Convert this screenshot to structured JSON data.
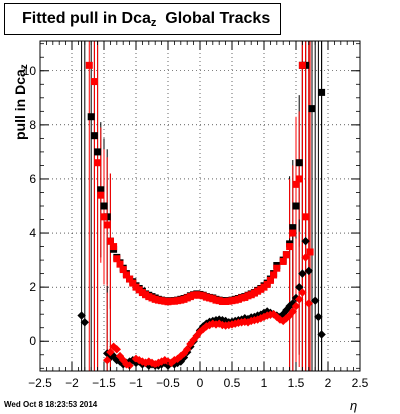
{
  "title": {
    "main": "Fitted pull in Dca",
    "subscript": "z",
    "suffix": "Global Tracks"
  },
  "timestamp": "Wed Oct  8 18:23:53 2014",
  "chart_data": {
    "type": "scatter",
    "title": "Fitted pull in Dca_z Global Tracks",
    "xlabel": "η",
    "ylabel": "pull in Dca_z",
    "xlim": [
      -2.5,
      2.5
    ],
    "ylim": [
      -1.1,
      11.1
    ],
    "x_ticks": [
      "-2.5",
      "-2",
      "-1.5",
      "-1",
      "-0.5",
      "0",
      "0.5",
      "1",
      "1.5",
      "2",
      "2.5"
    ],
    "y_ticks": [
      "0",
      "2",
      "4",
      "6",
      "8",
      "10"
    ],
    "grid": true,
    "series": [
      {
        "marker": "square",
        "color": "#000000",
        "points": [
          [
            -1.7,
            8.3
          ],
          [
            -1.65,
            7.6
          ],
          [
            -1.6,
            7.0
          ],
          [
            -1.55,
            5.6
          ],
          [
            -1.5,
            5.0
          ],
          [
            -1.45,
            4.6
          ],
          [
            -1.4,
            3.7
          ],
          [
            -1.35,
            3.4
          ],
          [
            -1.3,
            3.1
          ],
          [
            -1.25,
            2.9
          ],
          [
            -1.2,
            2.7
          ],
          [
            -1.15,
            2.5
          ],
          [
            -1.1,
            2.3
          ],
          [
            -1.05,
            2.2
          ],
          [
            -1.0,
            2.05
          ],
          [
            -0.95,
            1.95
          ],
          [
            -0.9,
            1.85
          ],
          [
            -0.85,
            1.75
          ],
          [
            -0.8,
            1.7
          ],
          [
            -0.75,
            1.65
          ],
          [
            -0.7,
            1.6
          ],
          [
            -0.65,
            1.55
          ],
          [
            -0.6,
            1.52
          ],
          [
            -0.55,
            1.5
          ],
          [
            -0.5,
            1.48
          ],
          [
            -0.45,
            1.5
          ],
          [
            -0.4,
            1.5
          ],
          [
            -0.35,
            1.52
          ],
          [
            -0.3,
            1.55
          ],
          [
            -0.25,
            1.58
          ],
          [
            -0.2,
            1.62
          ],
          [
            -0.15,
            1.68
          ],
          [
            -0.1,
            1.72
          ],
          [
            -0.05,
            1.75
          ],
          [
            0.0,
            1.73
          ],
          [
            0.05,
            1.7
          ],
          [
            0.1,
            1.65
          ],
          [
            0.15,
            1.62
          ],
          [
            0.2,
            1.6
          ],
          [
            0.25,
            1.55
          ],
          [
            0.3,
            1.52
          ],
          [
            0.35,
            1.5
          ],
          [
            0.4,
            1.5
          ],
          [
            0.45,
            1.5
          ],
          [
            0.5,
            1.52
          ],
          [
            0.55,
            1.55
          ],
          [
            0.6,
            1.58
          ],
          [
            0.65,
            1.62
          ],
          [
            0.7,
            1.65
          ],
          [
            0.75,
            1.7
          ],
          [
            0.8,
            1.75
          ],
          [
            0.85,
            1.8
          ],
          [
            0.9,
            1.88
          ],
          [
            0.95,
            1.95
          ],
          [
            1.0,
            2.05
          ],
          [
            1.05,
            2.15
          ],
          [
            1.1,
            2.3
          ],
          [
            1.15,
            2.5
          ],
          [
            1.2,
            2.8
          ],
          [
            1.3,
            3.0
          ],
          [
            1.35,
            3.2
          ],
          [
            1.4,
            3.6
          ],
          [
            1.45,
            4.2
          ],
          [
            1.5,
            5.0
          ],
          [
            1.55,
            6.6
          ],
          [
            1.6,
            10.2
          ],
          [
            1.65,
            10.2
          ],
          [
            1.75,
            8.6
          ],
          [
            1.9,
            9.2
          ]
        ]
      },
      {
        "marker": "square",
        "color": "#ff0000",
        "points": [
          [
            -1.73,
            10.2
          ],
          [
            -1.65,
            9.6
          ],
          [
            -1.6,
            6.6
          ],
          [
            -1.55,
            5.4
          ],
          [
            -1.5,
            4.6
          ],
          [
            -1.45,
            4.3
          ],
          [
            -1.4,
            3.7
          ],
          [
            -1.35,
            3.5
          ],
          [
            -1.3,
            3.05
          ],
          [
            -1.25,
            2.85
          ],
          [
            -1.2,
            2.65
          ],
          [
            -1.15,
            2.45
          ],
          [
            -1.1,
            2.3
          ],
          [
            -1.05,
            2.15
          ],
          [
            -1.0,
            2.0
          ],
          [
            -0.95,
            1.9
          ],
          [
            -0.9,
            1.8
          ],
          [
            -0.85,
            1.72
          ],
          [
            -0.8,
            1.65
          ],
          [
            -0.75,
            1.6
          ],
          [
            -0.7,
            1.55
          ],
          [
            -0.65,
            1.52
          ],
          [
            -0.6,
            1.5
          ],
          [
            -0.55,
            1.48
          ],
          [
            -0.5,
            1.46
          ],
          [
            -0.45,
            1.48
          ],
          [
            -0.4,
            1.48
          ],
          [
            -0.35,
            1.5
          ],
          [
            -0.3,
            1.52
          ],
          [
            -0.25,
            1.55
          ],
          [
            -0.2,
            1.6
          ],
          [
            -0.15,
            1.65
          ],
          [
            -0.1,
            1.7
          ],
          [
            -0.05,
            1.72
          ],
          [
            0.0,
            1.7
          ],
          [
            0.05,
            1.68
          ],
          [
            0.1,
            1.63
          ],
          [
            0.15,
            1.6
          ],
          [
            0.2,
            1.57
          ],
          [
            0.25,
            1.52
          ],
          [
            0.3,
            1.5
          ],
          [
            0.35,
            1.47
          ],
          [
            0.4,
            1.47
          ],
          [
            0.45,
            1.48
          ],
          [
            0.5,
            1.5
          ],
          [
            0.55,
            1.52
          ],
          [
            0.6,
            1.55
          ],
          [
            0.65,
            1.6
          ],
          [
            0.7,
            1.62
          ],
          [
            0.75,
            1.68
          ],
          [
            0.8,
            1.72
          ],
          [
            0.85,
            1.78
          ],
          [
            0.9,
            1.85
          ],
          [
            0.95,
            1.92
          ],
          [
            1.0,
            2.0
          ],
          [
            1.05,
            2.1
          ],
          [
            1.1,
            2.25
          ],
          [
            1.15,
            2.45
          ],
          [
            1.2,
            2.7
          ],
          [
            1.3,
            2.95
          ],
          [
            1.35,
            3.2
          ],
          [
            1.4,
            3.5
          ],
          [
            1.45,
            4.0
          ],
          [
            1.5,
            5.8
          ],
          [
            1.55,
            6.0
          ],
          [
            1.6,
            10.2
          ],
          [
            1.65,
            4.6
          ],
          [
            1.72,
            3.3
          ]
        ]
      },
      {
        "marker": "diamond",
        "color": "#000000",
        "points": [
          [
            -1.85,
            0.95
          ],
          [
            -1.8,
            0.7
          ],
          [
            -1.45,
            -0.45
          ],
          [
            -1.4,
            -0.6
          ],
          [
            -1.35,
            -0.55
          ],
          [
            -1.3,
            -0.7
          ],
          [
            -1.25,
            -0.75
          ],
          [
            -1.2,
            -0.85
          ],
          [
            -1.15,
            -0.8
          ],
          [
            -1.1,
            -0.75
          ],
          [
            -1.05,
            -0.7
          ],
          [
            -1.0,
            -0.8
          ],
          [
            -0.95,
            -0.75
          ],
          [
            -0.9,
            -0.85
          ],
          [
            -0.85,
            -0.8
          ],
          [
            -0.8,
            -0.9
          ],
          [
            -0.75,
            -0.85
          ],
          [
            -0.7,
            -0.9
          ],
          [
            -0.65,
            -0.9
          ],
          [
            -0.6,
            -0.85
          ],
          [
            -0.55,
            -0.8
          ],
          [
            -0.5,
            -0.9
          ],
          [
            -0.45,
            -0.8
          ],
          [
            -0.4,
            -0.85
          ],
          [
            -0.35,
            -0.8
          ],
          [
            -0.3,
            -0.75
          ],
          [
            -0.25,
            -0.6
          ],
          [
            -0.2,
            -0.4
          ],
          [
            -0.15,
            -0.2
          ],
          [
            -0.1,
            0.0
          ],
          [
            -0.05,
            0.2
          ],
          [
            0.0,
            0.4
          ],
          [
            0.05,
            0.55
          ],
          [
            0.1,
            0.65
          ],
          [
            0.15,
            0.72
          ],
          [
            0.2,
            0.75
          ],
          [
            0.25,
            0.78
          ],
          [
            0.3,
            0.8
          ],
          [
            0.35,
            0.78
          ],
          [
            0.4,
            0.75
          ],
          [
            0.45,
            0.7
          ],
          [
            0.5,
            0.72
          ],
          [
            0.55,
            0.75
          ],
          [
            0.6,
            0.78
          ],
          [
            0.65,
            0.8
          ],
          [
            0.7,
            0.85
          ],
          [
            0.75,
            0.82
          ],
          [
            0.8,
            0.88
          ],
          [
            0.85,
            0.9
          ],
          [
            0.9,
            0.95
          ],
          [
            0.95,
            0.98
          ],
          [
            1.0,
            1.05
          ],
          [
            1.05,
            1.1
          ],
          [
            1.1,
            1.05
          ],
          [
            1.15,
            1.0
          ],
          [
            1.2,
            0.95
          ],
          [
            1.25,
            0.9
          ],
          [
            1.3,
            1.0
          ],
          [
            1.35,
            1.15
          ],
          [
            1.4,
            1.3
          ],
          [
            1.45,
            1.4
          ],
          [
            1.5,
            1.6
          ],
          [
            1.55,
            2.0
          ],
          [
            1.6,
            2.5
          ],
          [
            1.65,
            3.7
          ],
          [
            1.7,
            2.6
          ],
          [
            1.8,
            1.5
          ],
          [
            1.85,
            0.9
          ],
          [
            1.9,
            0.25
          ]
        ]
      },
      {
        "marker": "diamond",
        "color": "#ff0000",
        "points": [
          [
            -1.45,
            -0.7
          ],
          [
            -1.4,
            -0.4
          ],
          [
            -1.35,
            -0.2
          ],
          [
            -1.3,
            -0.3
          ],
          [
            -1.25,
            -0.55
          ],
          [
            -1.2,
            -0.7
          ],
          [
            -1.15,
            -0.85
          ],
          [
            -1.1,
            -0.9
          ],
          [
            -1.0,
            -0.65
          ],
          [
            -0.95,
            -0.7
          ],
          [
            -0.9,
            -0.75
          ],
          [
            -0.85,
            -0.8
          ],
          [
            -0.8,
            -0.75
          ],
          [
            -0.75,
            -0.8
          ],
          [
            -0.7,
            -0.85
          ],
          [
            -0.65,
            -0.8
          ],
          [
            -0.6,
            -0.75
          ],
          [
            -0.55,
            -0.7
          ],
          [
            -0.5,
            -0.75
          ],
          [
            -0.45,
            -0.8
          ],
          [
            -0.4,
            -0.7
          ],
          [
            -0.35,
            -0.65
          ],
          [
            -0.3,
            -0.55
          ],
          [
            -0.25,
            -0.45
          ],
          [
            -0.2,
            -0.3
          ],
          [
            -0.15,
            -0.1
          ],
          [
            -0.1,
            0.05
          ],
          [
            -0.05,
            0.2
          ],
          [
            0.0,
            0.35
          ],
          [
            0.05,
            0.45
          ],
          [
            0.1,
            0.55
          ],
          [
            0.15,
            0.6
          ],
          [
            0.2,
            0.65
          ],
          [
            0.25,
            0.62
          ],
          [
            0.3,
            0.65
          ],
          [
            0.35,
            0.6
          ],
          [
            0.4,
            0.58
          ],
          [
            0.45,
            0.6
          ],
          [
            0.5,
            0.62
          ],
          [
            0.55,
            0.65
          ],
          [
            0.6,
            0.68
          ],
          [
            0.65,
            0.7
          ],
          [
            0.7,
            0.72
          ],
          [
            0.75,
            0.7
          ],
          [
            0.8,
            0.75
          ],
          [
            0.85,
            0.78
          ],
          [
            0.9,
            0.8
          ],
          [
            0.95,
            0.85
          ],
          [
            1.0,
            0.9
          ],
          [
            1.05,
            0.95
          ],
          [
            1.1,
            0.98
          ],
          [
            1.15,
            1.0
          ],
          [
            1.2,
            0.9
          ],
          [
            1.25,
            0.8
          ],
          [
            1.3,
            0.75
          ],
          [
            1.35,
            0.85
          ],
          [
            1.4,
            0.95
          ],
          [
            1.45,
            1.1
          ],
          [
            1.5,
            1.3
          ],
          [
            1.55,
            1.55
          ],
          [
            1.6,
            1.8
          ],
          [
            1.65,
            3.1
          ],
          [
            1.7,
            1.4
          ]
        ]
      }
    ]
  }
}
